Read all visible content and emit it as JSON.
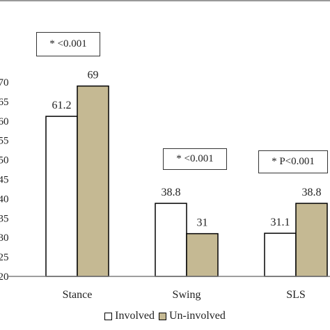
{
  "colors": {
    "involved_fill": "#ffffff",
    "uninvolved_fill": "#c5b993",
    "bar_stroke": "#000000",
    "axis": "#7f7f7f",
    "text": "#222222"
  },
  "annotations": [
    {
      "category": "Stance",
      "text": "* <0.001"
    },
    {
      "category": "Swing",
      "text": "* <0.001"
    },
    {
      "category": "SLS",
      "text": "* P<0.001"
    }
  ],
  "legend": {
    "involved_label": "Involved",
    "uninvolved_label": "Un-involved"
  },
  "chart_data": {
    "type": "bar",
    "title": "",
    "xlabel": "",
    "ylabel": "",
    "categories": [
      "Stance",
      "Swing",
      "SLS"
    ],
    "series": [
      {
        "name": "Involved",
        "values": [
          61.2,
          38.8,
          31.1
        ]
      },
      {
        "name": "Un-involved",
        "values": [
          69,
          31,
          38.8
        ]
      }
    ],
    "ylim": [
      20,
      70
    ],
    "yticks": [
      20,
      25,
      30,
      35,
      40,
      45,
      50,
      55,
      60,
      65,
      70
    ],
    "ytick_labels": [
      "20",
      "25",
      "30",
      "35",
      "40",
      "45",
      "50",
      "55",
      "60",
      "65",
      "70"
    ],
    "data_labels": [
      [
        "61.2",
        "38.8",
        "31.1"
      ],
      [
        "69",
        "31",
        "38.8"
      ]
    ],
    "grid": false,
    "legend_position": "bottom"
  }
}
